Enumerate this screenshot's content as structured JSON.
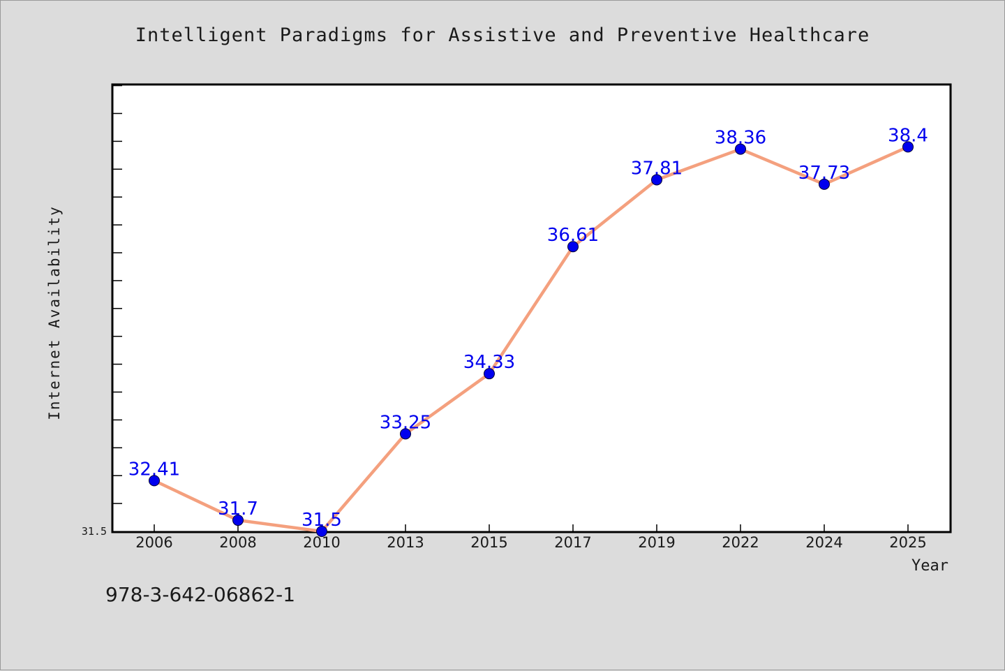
{
  "figure": {
    "title": "Intelligent Paradigms for Assistive and Preventive Healthcare",
    "footer_text": "978-3-642-06862-1"
  },
  "chart_data": {
    "type": "line",
    "title": "Intelligent Paradigms for Assistive and Preventive Healthcare",
    "xlabel": "Year",
    "ylabel": "Internet Availability",
    "categories": [
      "2006",
      "2008",
      "2010",
      "2013",
      "2015",
      "2017",
      "2019",
      "2022",
      "2024",
      "2025"
    ],
    "series": [
      {
        "values": [
          32.41,
          31.7,
          31.5,
          33.25,
          34.33,
          36.61,
          37.81,
          38.36,
          37.73,
          38.4
        ],
        "labels": [
          "32.41",
          "31.7",
          "31.5",
          "33.25",
          "34.33",
          "36.61",
          "37.81",
          "38.36",
          "37.73",
          "38.4"
        ]
      }
    ],
    "ylim": [
      31.5,
      39.52
    ],
    "y_tick_labels": [
      "31.5"
    ],
    "y_minor_tick_step": 0.5,
    "grid": false,
    "colors": {
      "line": "#f4a07e",
      "marker": "#0000ee",
      "data_label": "#0000ee",
      "plot_background": "#ffffff",
      "figure_background": "#dcdcdc"
    }
  }
}
